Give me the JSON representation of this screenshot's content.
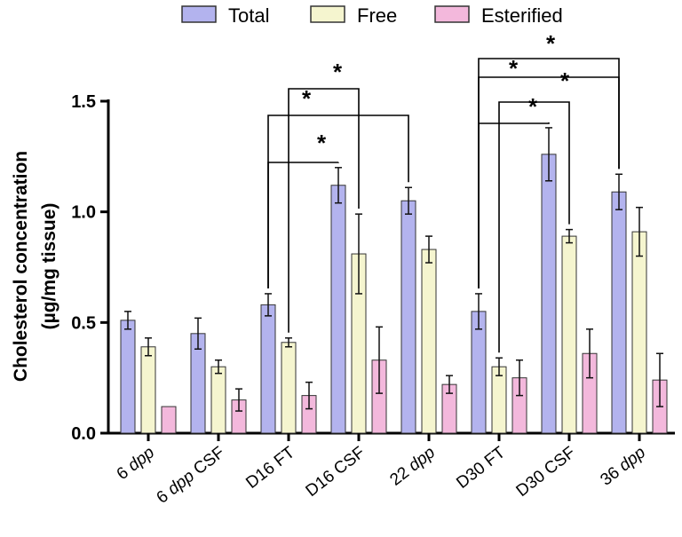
{
  "chart_data": {
    "type": "bar",
    "title": "",
    "xlabel": "",
    "ylabel": "Cholesterol concentration (µg/mg tissue)",
    "ylabel_lines": [
      "Cholesterol concentration",
      "(µg/mg tissue)"
    ],
    "ylim": [
      0,
      1.5
    ],
    "yticks": [
      "0.0",
      "0.5",
      "1.0",
      "1.5"
    ],
    "legend_position": "top",
    "categories": [
      {
        "main": "6 ",
        "italic": "dpp",
        "after": ""
      },
      {
        "main": "6 ",
        "italic": "dpp",
        "after": " CSF"
      },
      {
        "main": "D16 FT",
        "italic": "",
        "after": ""
      },
      {
        "main": "D16 CSF",
        "italic": "",
        "after": ""
      },
      {
        "main": "22 ",
        "italic": "dpp",
        "after": ""
      },
      {
        "main": "D30 FT",
        "italic": "",
        "after": ""
      },
      {
        "main": "D30 CSF",
        "italic": "",
        "after": ""
      },
      {
        "main": "36 ",
        "italic": "dpp",
        "after": ""
      }
    ],
    "series": [
      {
        "name": "Total",
        "color": "#b3b3ee",
        "values": [
          0.51,
          0.45,
          0.58,
          1.12,
          1.05,
          0.55,
          1.26,
          1.09
        ],
        "errors": [
          0.04,
          0.07,
          0.05,
          0.08,
          0.06,
          0.08,
          0.12,
          0.08
        ]
      },
      {
        "name": "Free",
        "color": "#f5f5cf",
        "values": [
          0.39,
          0.3,
          0.41,
          0.81,
          0.83,
          0.3,
          0.89,
          0.91
        ],
        "errors": [
          0.04,
          0.03,
          0.02,
          0.18,
          0.06,
          0.04,
          0.03,
          0.11
        ]
      },
      {
        "name": "Esterified",
        "color": "#f3b8dc",
        "values": [
          0.12,
          0.15,
          0.17,
          0.33,
          0.22,
          0.25,
          0.36,
          0.24
        ],
        "errors": [
          0.0,
          0.05,
          0.06,
          0.15,
          0.04,
          0.08,
          0.11,
          0.12
        ]
      }
    ],
    "significance": [
      {
        "label": "*",
        "from": {
          "category": 2,
          "series": 0
        },
        "to": {
          "category": 3,
          "series": 0
        }
      },
      {
        "label": "*",
        "from": {
          "category": 2,
          "series": 0
        },
        "to": {
          "category": 4,
          "series": 0
        }
      },
      {
        "label": "*",
        "from": {
          "category": 2,
          "series": 1
        },
        "to": {
          "category": 3,
          "series": 1
        }
      },
      {
        "label": "*",
        "from": {
          "category": 5,
          "series": 0
        },
        "to": {
          "category": 6,
          "series": 0
        }
      },
      {
        "label": "*",
        "from": {
          "category": 5,
          "series": 0
        },
        "to": {
          "category": 7,
          "series": 0
        }
      },
      {
        "label": "*",
        "from": {
          "category": 5,
          "series": 1
        },
        "to": {
          "category": 6,
          "series": 1
        }
      },
      {
        "label": "*",
        "from": {
          "category": 5,
          "series": 0
        },
        "to": {
          "category": 7,
          "series": 0
        }
      }
    ]
  }
}
